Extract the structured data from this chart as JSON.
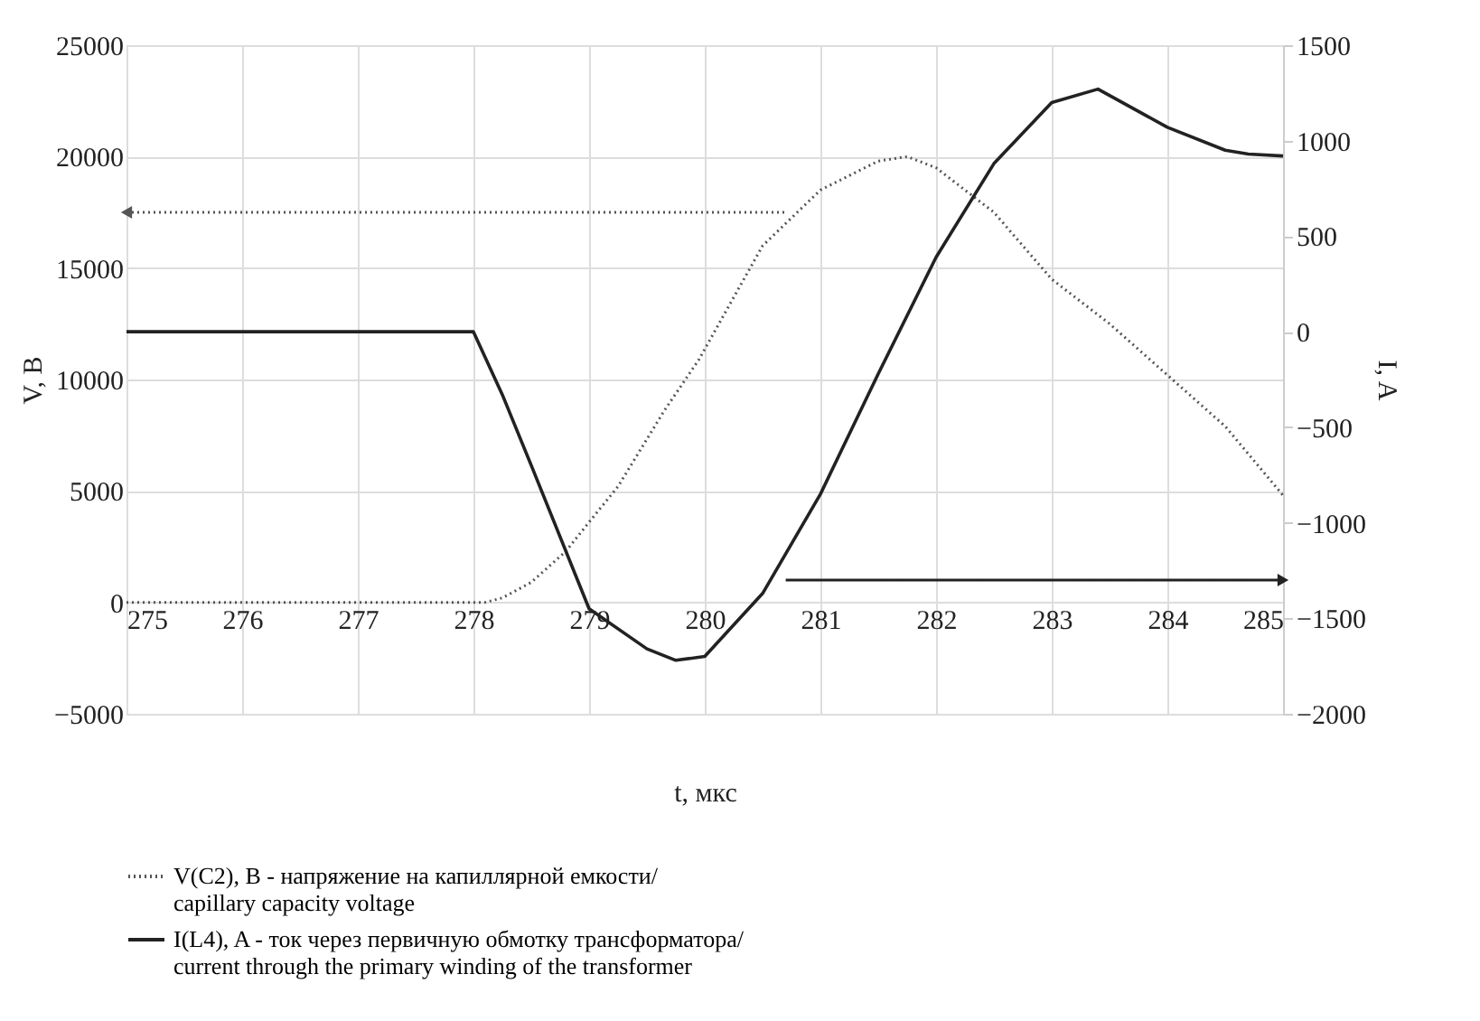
{
  "chart_data": {
    "type": "line",
    "xlabel": "t, мкс",
    "ylabel": "V, B",
    "y2label": "I, A",
    "xlim": [
      275,
      285
    ],
    "xticks": [
      275,
      276,
      277,
      278,
      279,
      280,
      281,
      282,
      283,
      284,
      285
    ],
    "ylim": [
      -5000,
      25000
    ],
    "yticks": [
      -5000,
      0,
      5000,
      10000,
      15000,
      20000,
      25000
    ],
    "y2lim": [
      -2000,
      1500
    ],
    "y2ticks": [
      -2000,
      -1500,
      -1000,
      -500,
      0,
      500,
      1000,
      1500
    ],
    "grid": true,
    "legend": "bottom",
    "marker": "none",
    "series": [
      {
        "name": "V(C2), B - напряжение на капиллярной емкости/\ncapillary capacity voltage",
        "color": "#555555",
        "line_style": "dotted",
        "x": [
          275,
          276,
          277,
          278,
          278.1,
          278.25,
          278.5,
          278.8,
          279,
          279.25,
          279.65,
          279.95,
          280.5,
          281,
          281.5,
          281.75,
          282,
          282.5,
          283,
          283.5,
          284,
          284.5,
          285
        ],
        "values": [
          0,
          0,
          0,
          0,
          0,
          200,
          900,
          2300,
          3600,
          5200,
          8600,
          10900,
          16000,
          18500,
          19800,
          20000,
          19500,
          17500,
          14500,
          12500,
          10200,
          7900,
          4800
        ]
      },
      {
        "name": "I(L4), A - ток через первичную обмотку трансформатора/\ncurrent through the primary winding of the transformer",
        "color": "#222222",
        "line_style": "solid",
        "axis": "y2",
        "x": [
          275,
          276,
          277,
          278,
          278.25,
          278.5,
          279,
          279.5,
          279.75,
          280,
          280.5,
          281,
          281.5,
          282,
          282.5,
          283,
          283.4,
          284,
          284.5,
          284.7,
          285
        ],
        "values": [
          0,
          0,
          0,
          0,
          -330,
          -700,
          -1450,
          -1660,
          -1720,
          -1700,
          -1370,
          -850,
          -220,
          390,
          880,
          1200,
          1270,
          1070,
          950,
          930,
          920
        ]
      }
    ]
  }
}
